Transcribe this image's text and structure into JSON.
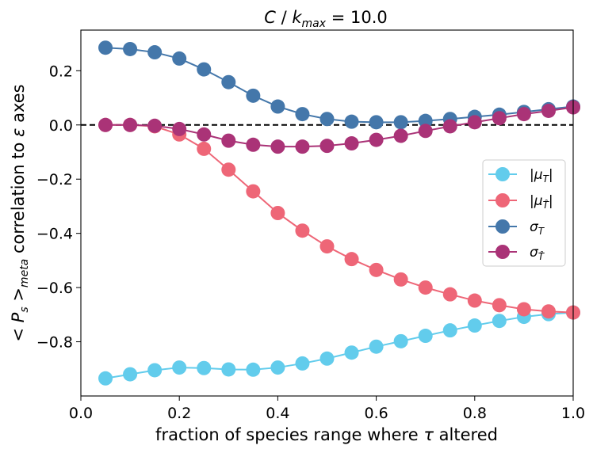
{
  "chart_data": {
    "type": "line",
    "title": "C / k_max = 10.0",
    "xlabel": "fraction of species range where τ altered",
    "ylabel": "< P_s >_meta correlation to ε axes",
    "xlim": [
      0.0,
      1.0
    ],
    "ylim": [
      -1.0,
      0.35
    ],
    "xticks": [
      "0.0",
      "0.2",
      "0.4",
      "0.6",
      "0.8",
      "1.0"
    ],
    "yticks": [
      "0.2",
      "0.0",
      "−0.2",
      "−0.4",
      "−0.6",
      "−0.8"
    ],
    "grid": false,
    "legend_position": "center-right",
    "reference_line": {
      "y": 0.0,
      "style": "dashed",
      "color": "#000000"
    },
    "x": [
      0.05,
      0.1,
      0.15,
      0.2,
      0.25,
      0.3,
      0.35,
      0.4,
      0.45,
      0.5,
      0.55,
      0.6,
      0.65,
      0.7,
      0.75,
      0.8,
      0.85,
      0.9,
      0.95,
      1.0
    ],
    "series": [
      {
        "name": "|μ_T|",
        "color": "#62CCEC",
        "values": [
          -0.935,
          -0.92,
          -0.905,
          -0.895,
          -0.897,
          -0.902,
          -0.903,
          -0.895,
          -0.88,
          -0.862,
          -0.84,
          -0.818,
          -0.798,
          -0.778,
          -0.758,
          -0.74,
          -0.723,
          -0.708,
          -0.698,
          -0.692
        ]
      },
      {
        "name": "|μ_T̂|",
        "color": "#EE6677",
        "values": [
          0.0,
          0.0,
          -0.005,
          -0.035,
          -0.088,
          -0.165,
          -0.245,
          -0.325,
          -0.39,
          -0.448,
          -0.495,
          -0.535,
          -0.57,
          -0.6,
          -0.625,
          -0.648,
          -0.665,
          -0.68,
          -0.688,
          -0.692
        ]
      },
      {
        "name": "σ_T",
        "color": "#4477AA",
        "values": [
          0.285,
          0.28,
          0.268,
          0.245,
          0.205,
          0.158,
          0.108,
          0.068,
          0.04,
          0.022,
          0.012,
          0.01,
          0.01,
          0.015,
          0.022,
          0.03,
          0.038,
          0.048,
          0.058,
          0.068
        ]
      },
      {
        "name": "σ_T̂",
        "color": "#AA3377",
        "values": [
          0.0,
          0.0,
          -0.003,
          -0.015,
          -0.035,
          -0.058,
          -0.073,
          -0.08,
          -0.08,
          -0.077,
          -0.068,
          -0.055,
          -0.04,
          -0.022,
          -0.005,
          0.01,
          0.025,
          0.04,
          0.052,
          0.065
        ]
      }
    ]
  }
}
